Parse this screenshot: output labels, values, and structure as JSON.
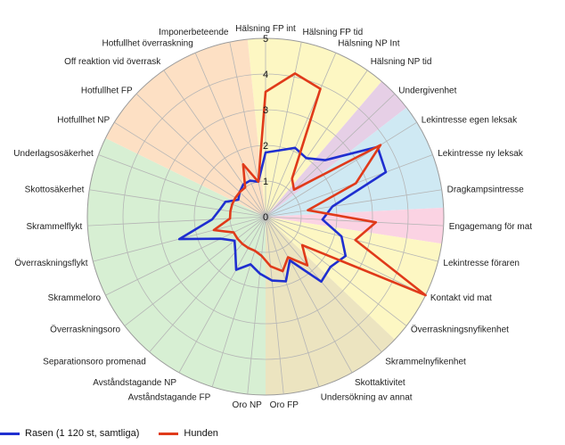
{
  "chart_data": {
    "type": "radar",
    "title": "",
    "rmax": 5,
    "ticks": [
      "0",
      "1",
      "2",
      "3",
      "4",
      "5"
    ],
    "grid": true,
    "legend_position": "bottom-left",
    "categories": [
      "Hälsning FP int",
      "Hälsning FP tid",
      "Hälsning NP Int",
      "Hälsning NP tid",
      "Undergivenhet",
      "Lekintresse egen leksak",
      "Lekintresse ny leksak",
      "Dragkampsintresse",
      "Engagemang för mat",
      "Lekintresse föraren",
      "Kontakt vid mat",
      "Överraskningsnyfikenhet",
      "Skrammelnyfikenhet",
      "Skottaktivitet",
      "Undersökning av annat",
      "Oro FP",
      "Oro NP",
      "Avståndstagande FP",
      "Avståndstagande NP",
      "Separationsoro promenad",
      "Överraskningsoro",
      "Skrammeloro",
      "Överraskningsflykt",
      "Skrammelflykt",
      "Skottosäkerhet",
      "Underlagsosäkerhet",
      "Hotfullhet NP",
      "Hotfullhet FP",
      "Off reaktion vid överrask",
      "Hotfullhet överraskning",
      "Imponerbeteende"
    ],
    "sectors": [
      {
        "start": 0,
        "end": 3,
        "color": "#fdf7c3"
      },
      {
        "start": 4,
        "end": 4,
        "color": "#e6cfe6"
      },
      {
        "start": 5,
        "end": 7,
        "color": "#cfe9f3"
      },
      {
        "start": 8,
        "end": 8,
        "color": "#fbd3e3"
      },
      {
        "start": 9,
        "end": 11,
        "color": "#fdf7c3"
      },
      {
        "start": 12,
        "end": 15,
        "color": "#ece4c0"
      },
      {
        "start": 16,
        "end": 25,
        "color": "#d7efd3"
      },
      {
        "start": 26,
        "end": 30,
        "color": "#fde0c4"
      }
    ],
    "series": [
      {
        "name": "Rasen (1 120 st, samtliga)",
        "color": "#1f2fd0",
        "values": [
          1.8,
          1.9,
          2.1,
          2.0,
          2.3,
          3.7,
          3.6,
          1.9,
          1.6,
          2.2,
          2.5,
          2.3,
          2.4,
          1.4,
          1.9,
          1.8,
          1.6,
          1.4,
          1.7,
          1.3,
          1.1,
          1.4,
          2.5,
          1.5,
          1.3,
          1.2,
          0.9,
          1.0,
          1.1,
          1.1,
          1.0
        ]
      },
      {
        "name": "Hunden",
        "color": "#e03a1a",
        "values": [
          3.5,
          4.1,
          3.9,
          1.3,
          1.1,
          3.8,
          2.7,
          1.2,
          3.1,
          2.6,
          5.0,
          1.3,
          1.8,
          1.3,
          1.6,
          1.4,
          1.1,
          1.0,
          1.0,
          1.0,
          1.0,
          1.0,
          1.5,
          1.0,
          1.0,
          1.0,
          1.0,
          1.0,
          1.0,
          1.6,
          1.0
        ]
      }
    ]
  }
}
